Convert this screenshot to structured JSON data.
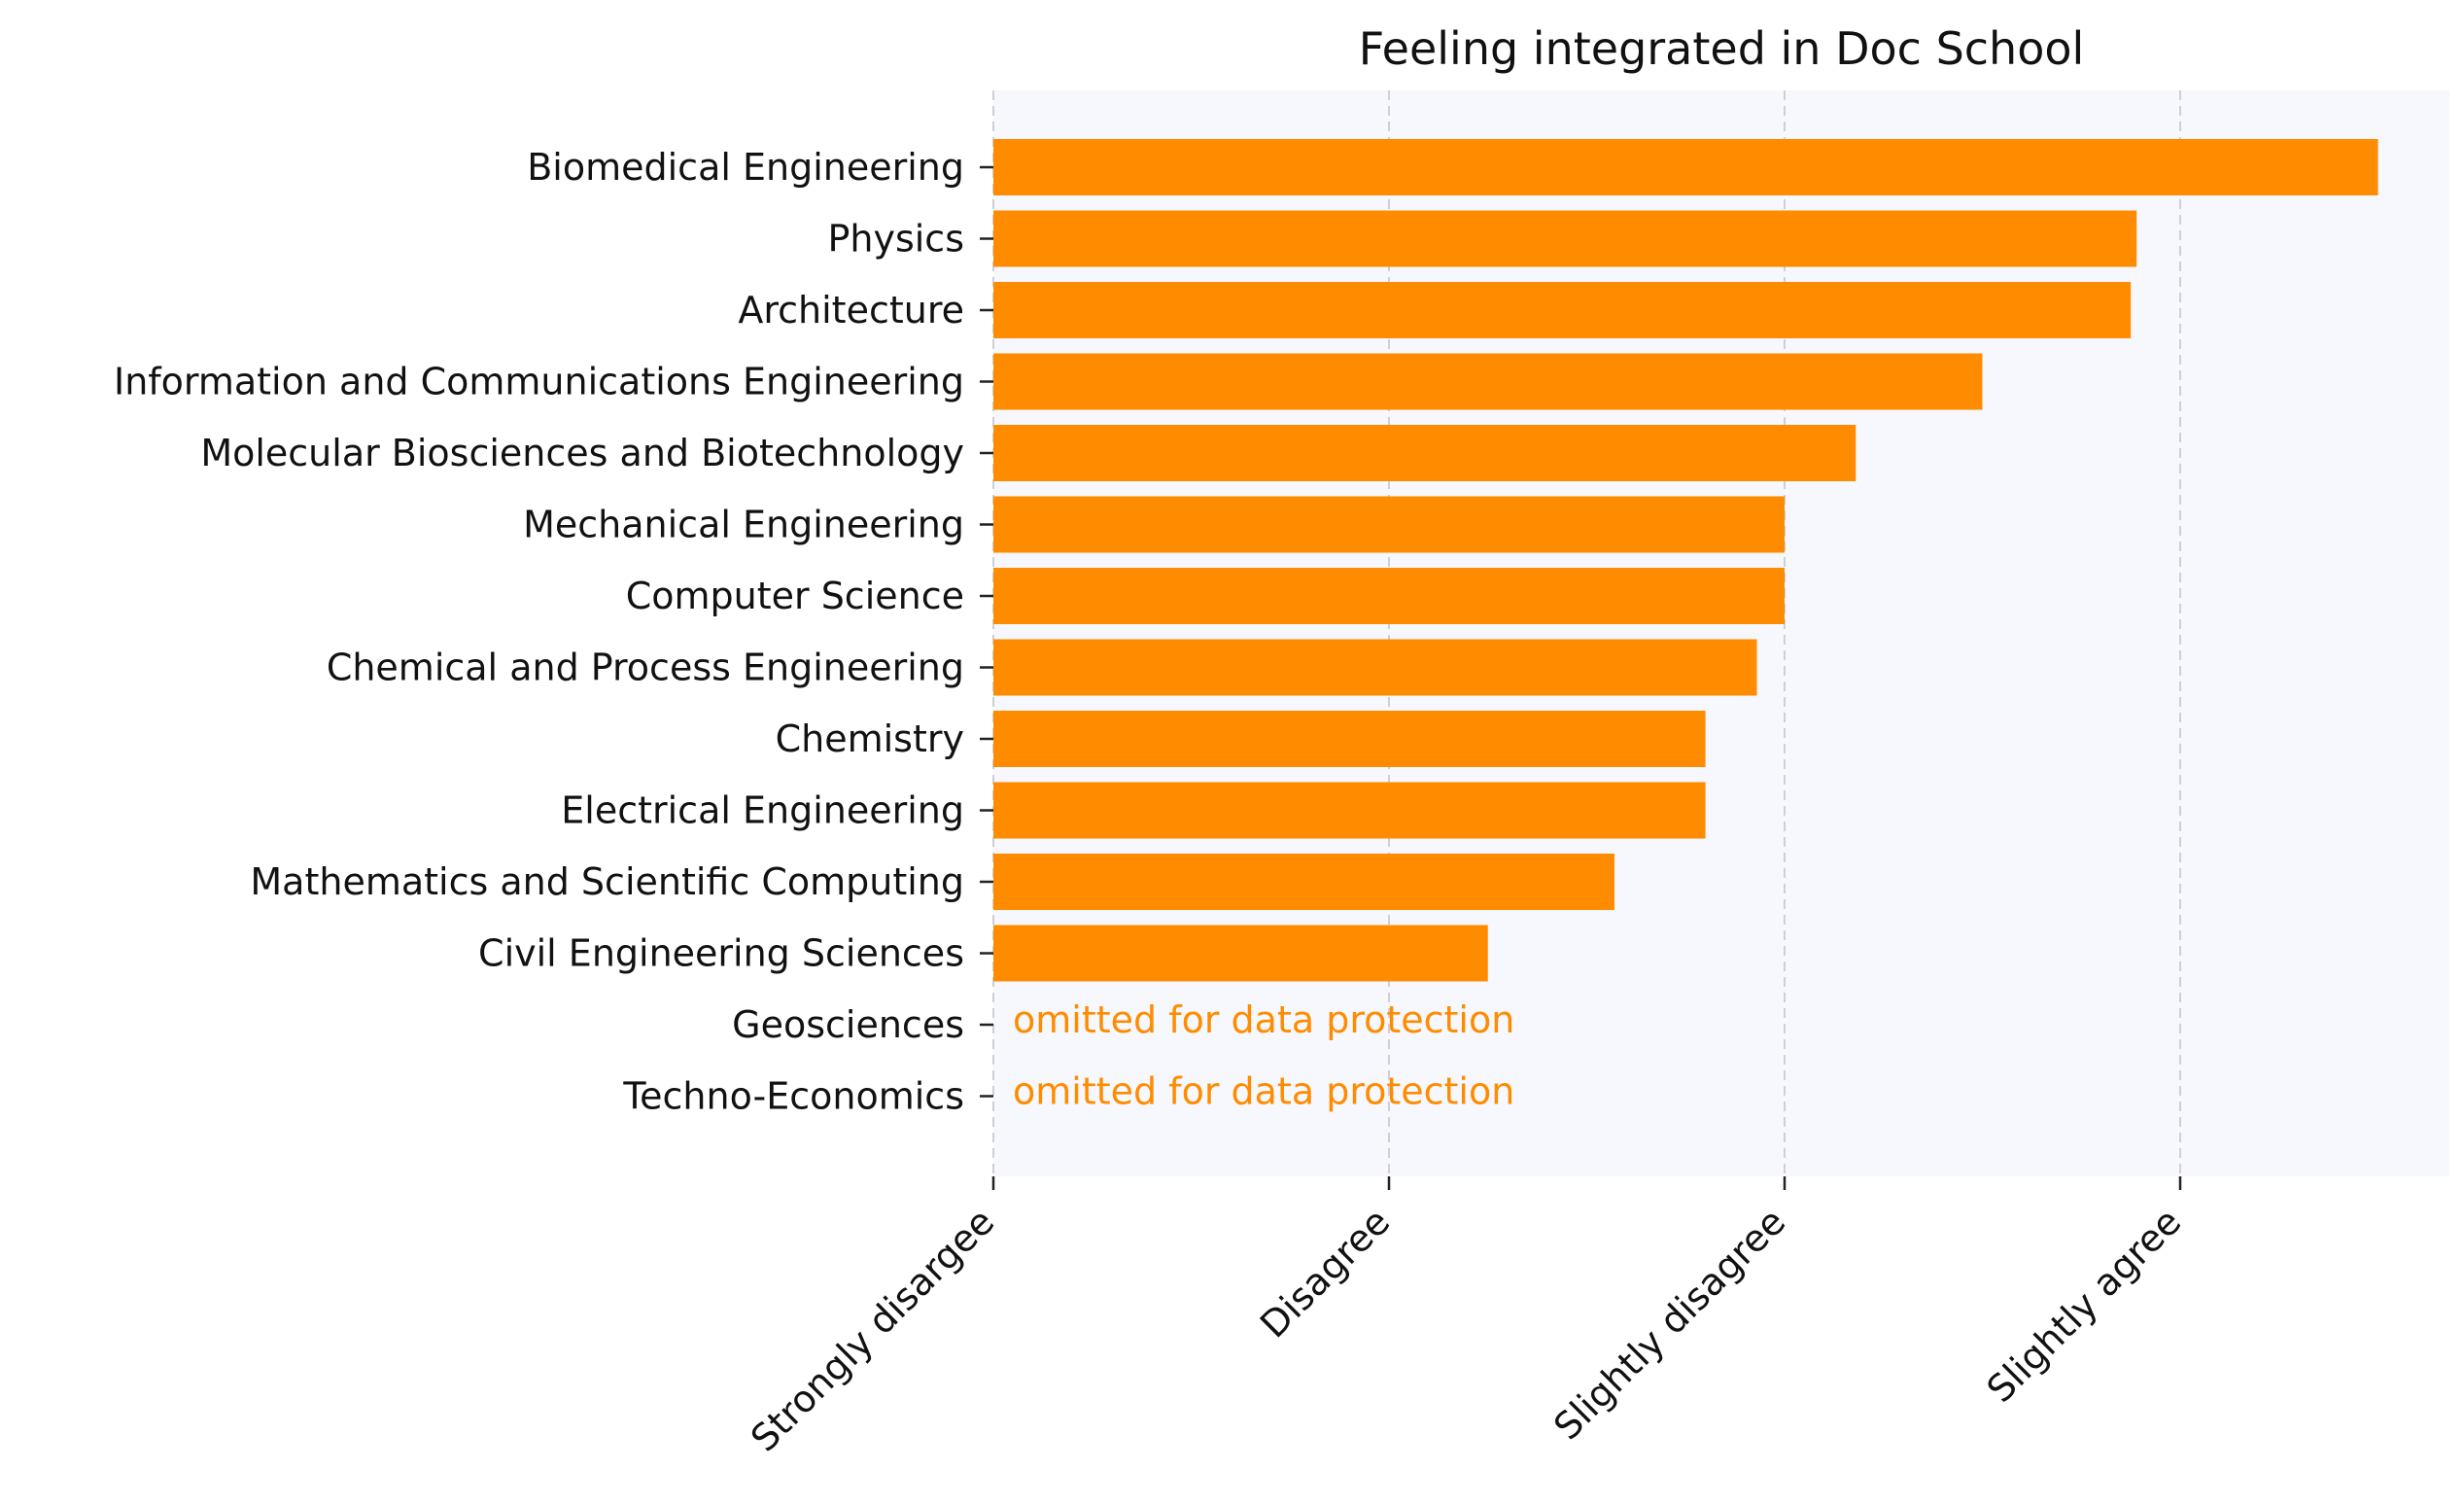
{
  "chart_data": {
    "type": "bar",
    "orientation": "horizontal",
    "title": "Feeling integrated in Doc School",
    "xlabel": "",
    "ylabel": "",
    "x_ticks": [
      {
        "value": 1,
        "label": "Strongly disargee"
      },
      {
        "value": 2,
        "label": "Disagree"
      },
      {
        "value": 3,
        "label": "Slightly disagree"
      },
      {
        "value": 4,
        "label": "Slightly agree"
      }
    ],
    "xlim": [
      1,
      4.7
    ],
    "grid": "vertical dashed",
    "bar_color": "#ff8c00",
    "plot_background": "#f7f8fd",
    "categories": [
      "Biomedical Engineering",
      "Physics",
      "Architecture",
      "Information and Communications Engineering",
      "Molecular Biosciences and Biotechnology",
      "Mechanical Engineering",
      "Computer Science",
      "Chemical and Process Engineering",
      "Chemistry",
      "Electrical Engineering",
      "Mathematics and Scientific Computing",
      "Civil Engineering Sciences",
      "Geosciences",
      "Techno-Economics"
    ],
    "values": [
      4.5,
      3.89,
      3.875,
      3.5,
      3.18,
      3.0,
      3.0,
      2.93,
      2.8,
      2.8,
      2.57,
      2.25,
      null,
      null
    ],
    "annotations": [
      {
        "category": "Geosciences",
        "text": "omitted for data protection"
      },
      {
        "category": "Techno-Economics",
        "text": "omitted for data protection"
      }
    ]
  }
}
